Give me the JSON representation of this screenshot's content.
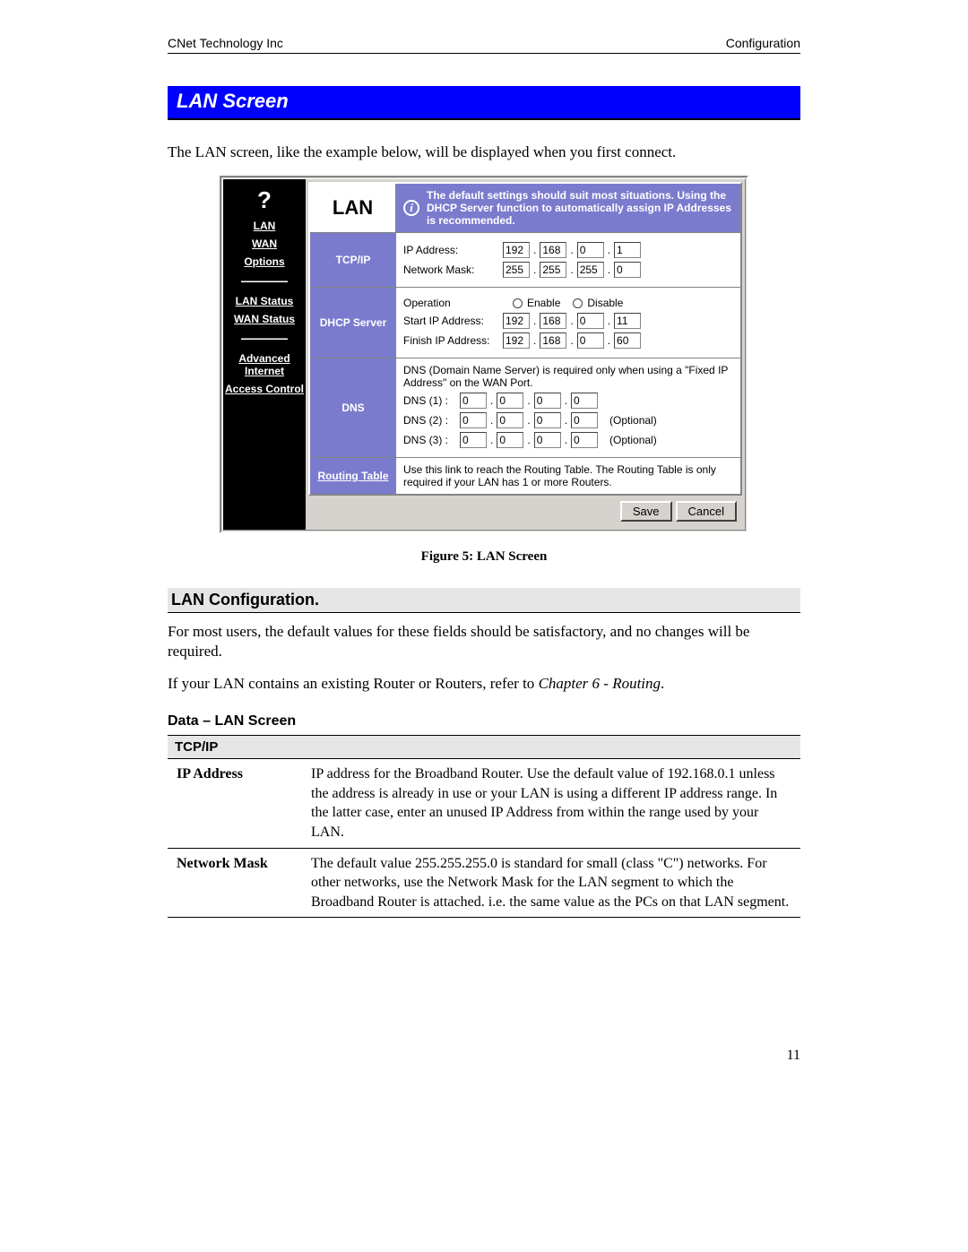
{
  "header": {
    "left": "CNet Technology Inc",
    "right": "Configuration"
  },
  "section_title": "LAN Screen",
  "intro": "The LAN screen, like the example below, will be displayed when you first connect.",
  "sidebar": {
    "qmark": "?",
    "items": [
      "LAN",
      "WAN",
      "Options",
      "LAN Status",
      "WAN Status",
      "Advanced Internet",
      "Access Control"
    ]
  },
  "panel": {
    "title": "LAN",
    "info_text": "The default settings should suit most situations. Using the DHCP Server function to automatically assign IP Addresses is recommended.",
    "tcpip": {
      "label": "TCP/IP",
      "ip_label": "IP Address:",
      "ip": [
        "192",
        "168",
        "0",
        "1"
      ],
      "mask_label": "Network Mask:",
      "mask": [
        "255",
        "255",
        "255",
        "0"
      ]
    },
    "dhcp": {
      "label": "DHCP Server",
      "op_label": "Operation",
      "enable": "Enable",
      "disable": "Disable",
      "start_label": "Start IP Address:",
      "start": [
        "192",
        "168",
        "0",
        "11"
      ],
      "finish_label": "Finish IP Address:",
      "finish": [
        "192",
        "168",
        "0",
        "60"
      ]
    },
    "dns": {
      "label": "DNS",
      "note": "DNS (Domain Name Server) is required only when using a \"Fixed IP Address\" on the WAN Port.",
      "rows": [
        {
          "lbl": "DNS (1) :",
          "v": [
            "0",
            "0",
            "0",
            "0"
          ],
          "opt": ""
        },
        {
          "lbl": "DNS (2) :",
          "v": [
            "0",
            "0",
            "0",
            "0"
          ],
          "opt": "(Optional)"
        },
        {
          "lbl": "DNS (3) :",
          "v": [
            "0",
            "0",
            "0",
            "0"
          ],
          "opt": "(Optional)"
        }
      ]
    },
    "routing": {
      "label": "Routing Table",
      "text": "Use this link to reach the Routing Table. The Routing Table is only required if your LAN has 1 or more Routers."
    },
    "buttons": {
      "save": "Save",
      "cancel": "Cancel"
    }
  },
  "figure_caption": "Figure 5: LAN Screen",
  "lan_config": {
    "heading": "LAN Configuration.",
    "p1": "For most users, the default values for these fields should be satisfactory, and no changes will be required.",
    "p2a": "If your LAN contains an existing Router or Routers, refer to ",
    "p2b": "Chapter 6 - Routing",
    "p2c": "."
  },
  "data_table": {
    "heading": "Data – LAN Screen",
    "section": "TCP/IP",
    "rows": [
      {
        "k": "IP Address",
        "v": "IP address for the Broadband Router. Use the default value of 192.168.0.1 unless the address is already in use or your LAN is using a different IP address range. In the latter case, enter an unused IP Address from within the range used by your LAN."
      },
      {
        "k": "Network Mask",
        "v": "The default value 255.255.255.0 is standard for small (class \"C\") networks. For other networks, use the Network Mask for the LAN segment to which the Broadband Router is attached. i.e. the same value as the PCs on that LAN segment."
      }
    ]
  },
  "page_number": "11"
}
